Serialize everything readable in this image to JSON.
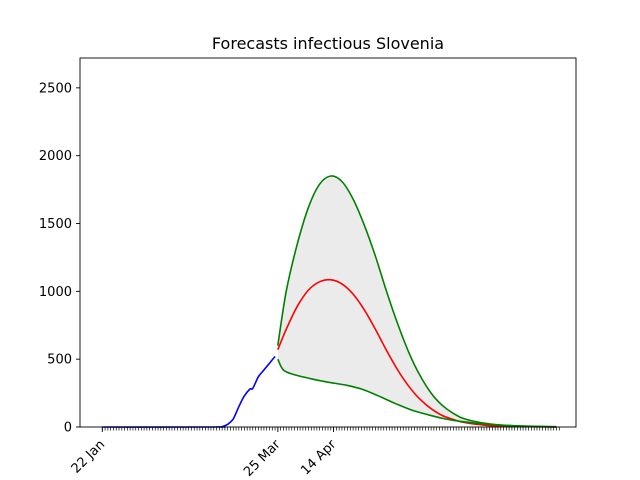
{
  "chart_data": {
    "type": "line",
    "title": "Forecasts infectious Slovenia",
    "xlabel": "",
    "ylabel": "",
    "x_start": "2020-01-22",
    "x_end": "2020-07-04",
    "ylim": [
      0,
      2720
    ],
    "y_ticks": [
      0,
      500,
      1000,
      1500,
      2000,
      2500
    ],
    "x_ticks": [
      {
        "date": "2020-01-22",
        "label": "22 Jan"
      },
      {
        "date": "2020-03-25",
        "label": "25 Mar"
      },
      {
        "date": "2020-04-14",
        "label": "14 Apr"
      }
    ],
    "grid": false,
    "legend": "none",
    "series": [
      {
        "color": "#0000ff",
        "points": [
          [
            "2020-01-22",
            0
          ],
          [
            "2020-03-02",
            0
          ],
          [
            "2020-03-05",
            3
          ],
          [
            "2020-03-07",
            20
          ],
          [
            "2020-03-09",
            60
          ],
          [
            "2020-03-11",
            150
          ],
          [
            "2020-03-13",
            230
          ],
          [
            "2020-03-15",
            280
          ],
          [
            "2020-03-16",
            285
          ],
          [
            "2020-03-18",
            370
          ],
          [
            "2020-03-20",
            420
          ],
          [
            "2020-03-22",
            470
          ],
          [
            "2020-03-24",
            520
          ]
        ]
      },
      {
        "color": "#ff0000",
        "points": [
          [
            "2020-03-25",
            570
          ],
          [
            "2020-03-28",
            720
          ],
          [
            "2020-04-01",
            890
          ],
          [
            "2020-04-05",
            1010
          ],
          [
            "2020-04-09",
            1070
          ],
          [
            "2020-04-13",
            1085
          ],
          [
            "2020-04-17",
            1055
          ],
          [
            "2020-04-21",
            980
          ],
          [
            "2020-04-25",
            865
          ],
          [
            "2020-04-29",
            720
          ],
          [
            "2020-05-03",
            565
          ],
          [
            "2020-05-07",
            420
          ],
          [
            "2020-05-11",
            300
          ],
          [
            "2020-05-15",
            205
          ],
          [
            "2020-05-19",
            135
          ],
          [
            "2020-05-23",
            85
          ],
          [
            "2020-05-27",
            55
          ],
          [
            "2020-05-31",
            33
          ],
          [
            "2020-06-08",
            12
          ],
          [
            "2020-06-16",
            5
          ],
          [
            "2020-06-24",
            2
          ],
          [
            "2020-07-03",
            1
          ]
        ]
      },
      {
        "color": "#008000",
        "points": [
          [
            "2020-03-25",
            600
          ],
          [
            "2020-03-28",
            1000
          ],
          [
            "2020-04-01",
            1350
          ],
          [
            "2020-04-05",
            1620
          ],
          [
            "2020-04-09",
            1790
          ],
          [
            "2020-04-13",
            1850
          ],
          [
            "2020-04-17",
            1810
          ],
          [
            "2020-04-21",
            1680
          ],
          [
            "2020-04-25",
            1490
          ],
          [
            "2020-04-29",
            1260
          ],
          [
            "2020-05-03",
            1000
          ],
          [
            "2020-05-07",
            760
          ],
          [
            "2020-05-11",
            550
          ],
          [
            "2020-05-15",
            380
          ],
          [
            "2020-05-19",
            250
          ],
          [
            "2020-05-23",
            160
          ],
          [
            "2020-05-27",
            100
          ],
          [
            "2020-05-31",
            60
          ],
          [
            "2020-06-08",
            25
          ],
          [
            "2020-06-16",
            10
          ],
          [
            "2020-06-24",
            4
          ],
          [
            "2020-07-03",
            1
          ]
        ]
      },
      {
        "color": "#008000",
        "points": [
          [
            "2020-03-25",
            500
          ],
          [
            "2020-03-27",
            420
          ],
          [
            "2020-03-31",
            385
          ],
          [
            "2020-04-06",
            355
          ],
          [
            "2020-04-12",
            330
          ],
          [
            "2020-04-18",
            310
          ],
          [
            "2020-04-24",
            280
          ],
          [
            "2020-04-30",
            230
          ],
          [
            "2020-05-06",
            175
          ],
          [
            "2020-05-12",
            125
          ],
          [
            "2020-05-18",
            90
          ],
          [
            "2020-05-24",
            60
          ],
          [
            "2020-05-30",
            40
          ],
          [
            "2020-06-07",
            22
          ],
          [
            "2020-06-15",
            12
          ],
          [
            "2020-06-23",
            6
          ],
          [
            "2020-07-03",
            2
          ]
        ]
      }
    ],
    "band": {
      "between": [
        2,
        3
      ],
      "color": "#ebebeb"
    }
  }
}
